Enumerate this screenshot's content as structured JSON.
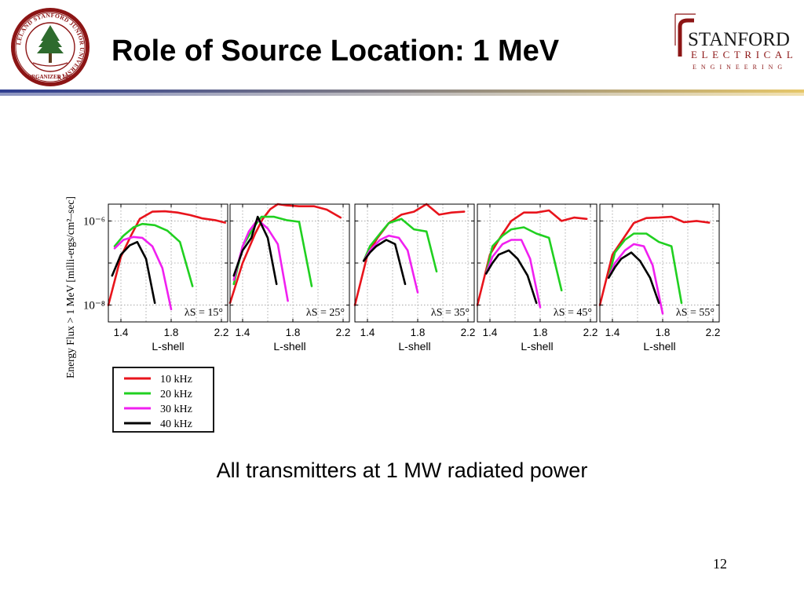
{
  "slide": {
    "title": "Role of Source Location: 1 MeV",
    "caption": "All transmitters at 1 MW radiated power",
    "page_number": "12"
  },
  "seal": {
    "ring_text": "LELAND STANFORD JUNIOR UNIVERSITY",
    "bottom_text": "ORGANIZED 1891",
    "color": "#8c1515"
  },
  "logo": {
    "line1": "STANFORD",
    "line2": "ELECTRICAL",
    "line3": "ENGINEERING",
    "color": "#8c1515"
  },
  "colors": {
    "bar_left": "#2e3d8f",
    "bar_right": "#e6c76a",
    "axis": "#000000",
    "grid": "#9a9a9a"
  },
  "chart_data": {
    "type": "line",
    "ylabel": "Energy Flux > 1 MeV  [milli-ergs/cm²–sec]",
    "xlabel": "L-shell",
    "xlim": [
      1.3,
      2.25
    ],
    "ylim_log10": [
      -8.4,
      -5.6
    ],
    "yscale": "log",
    "grid": true,
    "x_ticks": [
      "1.4",
      "1.8",
      "2.2"
    ],
    "y_tick_labels": [
      "10⁻⁶",
      "10⁻⁸"
    ],
    "legend_placement": "bottom-left",
    "series_names": [
      "10 kHz",
      "20 kHz",
      "30 kHz",
      "40 kHz"
    ],
    "series_colors": [
      "#e8141c",
      "#20d020",
      "#f020f0",
      "#000000"
    ],
    "panels": [
      {
        "label": "λS = 15°",
        "series": [
          {
            "name": "10 kHz",
            "x": [
              1.3,
              1.4,
              1.48,
              1.55,
              1.65,
              1.75,
              1.85,
              1.95,
              2.05,
              2.15,
              2.23
            ],
            "y": [
              -8.0,
              -6.85,
              -6.35,
              -5.95,
              -5.78,
              -5.77,
              -5.8,
              -5.86,
              -5.94,
              -5.98,
              -6.04
            ]
          },
          {
            "name": "20 kHz",
            "x": [
              1.35,
              1.42,
              1.5,
              1.57,
              1.67,
              1.77,
              1.87,
              1.97
            ],
            "y": [
              -6.6,
              -6.35,
              -6.15,
              -6.07,
              -6.1,
              -6.23,
              -6.5,
              -7.55
            ]
          },
          {
            "name": "30 kHz",
            "x": [
              1.35,
              1.42,
              1.5,
              1.57,
              1.65,
              1.73,
              1.8
            ],
            "y": [
              -6.65,
              -6.45,
              -6.38,
              -6.4,
              -6.6,
              -7.12,
              -8.1
            ]
          },
          {
            "name": "40 kHz",
            "x": [
              1.33,
              1.4,
              1.47,
              1.53,
              1.6,
              1.67
            ],
            "y": [
              -7.3,
              -6.8,
              -6.58,
              -6.5,
              -6.9,
              -7.95
            ]
          }
        ]
      },
      {
        "label": "λS = 25°",
        "series": [
          {
            "name": "10 kHz",
            "x": [
              1.3,
              1.4,
              1.5,
              1.56,
              1.62,
              1.68,
              1.75,
              1.85,
              1.97,
              2.07,
              2.18
            ],
            "y": [
              -7.95,
              -7.0,
              -6.3,
              -5.95,
              -5.72,
              -5.6,
              -5.63,
              -5.65,
              -5.65,
              -5.73,
              -5.92
            ]
          },
          {
            "name": "20 kHz",
            "x": [
              1.33,
              1.4,
              1.45,
              1.5,
              1.55,
              1.65,
              1.75,
              1.85,
              1.95
            ],
            "y": [
              -7.5,
              -6.6,
              -6.35,
              -6.1,
              -5.9,
              -5.9,
              -5.98,
              -6.02,
              -7.55
            ]
          },
          {
            "name": "30 kHz",
            "x": [
              1.33,
              1.4,
              1.45,
              1.52,
              1.6,
              1.68,
              1.76
            ],
            "y": [
              -7.4,
              -6.6,
              -6.25,
              -5.97,
              -6.18,
              -6.55,
              -7.9
            ]
          },
          {
            "name": "40 kHz",
            "x": [
              1.33,
              1.4,
              1.47,
              1.52,
              1.6,
              1.67
            ],
            "y": [
              -7.3,
              -6.7,
              -6.4,
              -5.9,
              -6.4,
              -7.5
            ]
          }
        ]
      },
      {
        "label": "λS = 35°",
        "series": [
          {
            "name": "10 kHz",
            "x": [
              1.3,
              1.4,
              1.48,
              1.57,
              1.67,
              1.77,
              1.87,
              1.97,
              2.07,
              2.17
            ],
            "y": [
              -8.0,
              -6.8,
              -6.4,
              -6.05,
              -5.85,
              -5.78,
              -5.6,
              -5.85,
              -5.8,
              -5.78
            ]
          },
          {
            "name": "20 kHz",
            "x": [
              1.37,
              1.42,
              1.5,
              1.57,
              1.67,
              1.77,
              1.87,
              1.95
            ],
            "y": [
              -6.95,
              -6.6,
              -6.3,
              -6.05,
              -5.95,
              -6.2,
              -6.25,
              -7.2
            ]
          },
          {
            "name": "30 kHz",
            "x": [
              1.37,
              1.42,
              1.5,
              1.57,
              1.65,
              1.72,
              1.8
            ],
            "y": [
              -6.95,
              -6.7,
              -6.45,
              -6.35,
              -6.4,
              -6.7,
              -7.7
            ]
          },
          {
            "name": "40 kHz",
            "x": [
              1.37,
              1.42,
              1.47,
              1.55,
              1.62,
              1.7
            ],
            "y": [
              -6.95,
              -6.75,
              -6.6,
              -6.45,
              -6.55,
              -7.5
            ]
          }
        ]
      },
      {
        "label": "λS = 45°",
        "series": [
          {
            "name": "10 kHz",
            "x": [
              1.3,
              1.4,
              1.48,
              1.57,
              1.67,
              1.77,
              1.87,
              1.97,
              2.07,
              2.17
            ],
            "y": [
              -8.0,
              -6.8,
              -6.4,
              -6.0,
              -5.8,
              -5.8,
              -5.75,
              -6.0,
              -5.92,
              -5.95
            ]
          },
          {
            "name": "20 kHz",
            "x": [
              1.37,
              1.42,
              1.5,
              1.57,
              1.67,
              1.77,
              1.87,
              1.97
            ],
            "y": [
              -7.25,
              -6.6,
              -6.35,
              -6.2,
              -6.15,
              -6.3,
              -6.4,
              -7.65
            ]
          },
          {
            "name": "30 kHz",
            "x": [
              1.37,
              1.42,
              1.5,
              1.57,
              1.65,
              1.72,
              1.8
            ],
            "y": [
              -7.25,
              -6.85,
              -6.55,
              -6.45,
              -6.45,
              -6.9,
              -8.05
            ]
          },
          {
            "name": "40 kHz",
            "x": [
              1.37,
              1.42,
              1.47,
              1.55,
              1.62,
              1.7,
              1.77
            ],
            "y": [
              -7.25,
              -7.0,
              -6.8,
              -6.7,
              -6.9,
              -7.3,
              -7.95
            ]
          }
        ]
      },
      {
        "label": "λS = 55°",
        "series": [
          {
            "name": "10 kHz",
            "x": [
              1.3,
              1.4,
              1.48,
              1.57,
              1.67,
              1.77,
              1.87,
              1.97,
              2.07,
              2.17
            ],
            "y": [
              -8.0,
              -6.8,
              -6.45,
              -6.05,
              -5.93,
              -5.92,
              -5.9,
              -6.03,
              -6.0,
              -6.04
            ]
          },
          {
            "name": "20 kHz",
            "x": [
              1.37,
              1.42,
              1.5,
              1.57,
              1.67,
              1.77,
              1.87,
              1.95
            ],
            "y": [
              -7.35,
              -6.75,
              -6.45,
              -6.3,
              -6.3,
              -6.5,
              -6.6,
              -7.95
            ]
          },
          {
            "name": "30 kHz",
            "x": [
              1.37,
              1.42,
              1.5,
              1.57,
              1.65,
              1.72,
              1.8
            ],
            "y": [
              -7.35,
              -7.0,
              -6.7,
              -6.55,
              -6.6,
              -7.05,
              -8.2
            ]
          },
          {
            "name": "40 kHz",
            "x": [
              1.37,
              1.42,
              1.47,
              1.55,
              1.62,
              1.7,
              1.77
            ],
            "y": [
              -7.35,
              -7.1,
              -6.9,
              -6.75,
              -6.95,
              -7.35,
              -7.95
            ]
          }
        ]
      }
    ]
  }
}
